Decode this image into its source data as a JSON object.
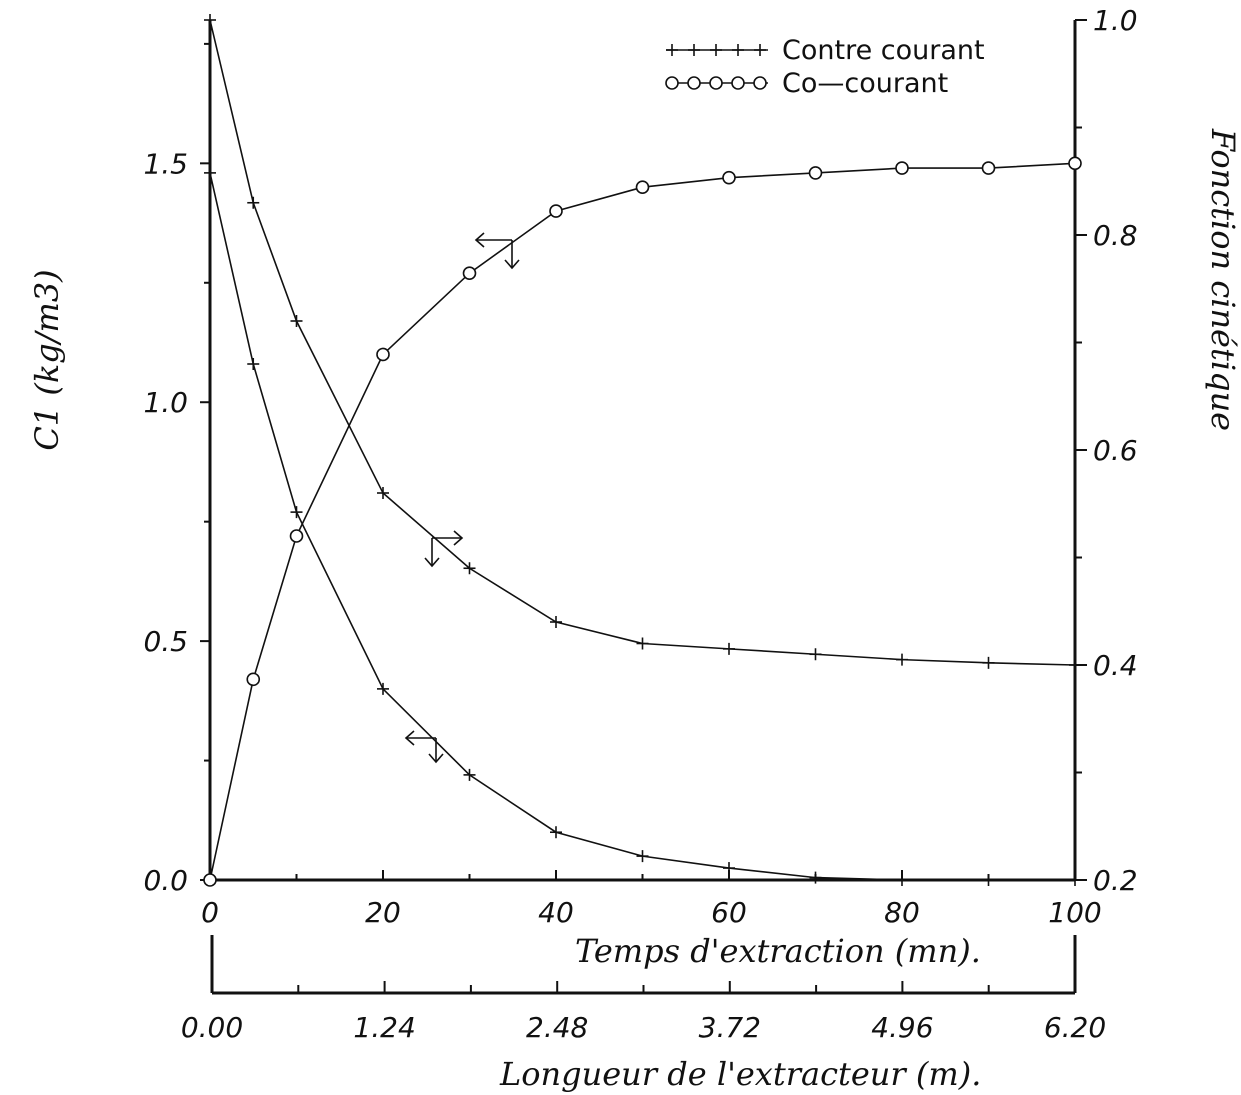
{
  "chart_data": {
    "type": "line",
    "x": [
      0,
      5,
      10,
      20,
      30,
      40,
      50,
      60,
      70,
      80,
      90,
      100
    ],
    "series": [
      {
        "name": "Contre courant",
        "axis": "right",
        "marker": "plus",
        "x": [
          0,
          5,
          10,
          20,
          30,
          40,
          50,
          60,
          70,
          80,
          90,
          100
        ],
        "values": [
          1.0,
          0.83,
          0.72,
          0.56,
          0.49,
          0.44,
          0.42,
          0.415,
          0.41,
          0.405,
          0.402,
          0.4
        ]
      },
      {
        "name": "Co-courant",
        "axis": "left",
        "marker": "circle",
        "x": [
          0,
          5,
          10,
          20,
          30,
          40,
          50,
          60,
          70,
          80,
          90,
          100
        ],
        "values": [
          0.0,
          0.42,
          0.72,
          1.1,
          1.27,
          1.4,
          1.45,
          1.47,
          1.48,
          1.49,
          1.49,
          1.5
        ]
      },
      {
        "name": "",
        "axis": "left",
        "marker": "plus",
        "x": [
          0,
          5,
          10,
          20,
          30,
          40,
          50,
          60,
          70,
          80,
          90,
          100
        ],
        "values": [
          1.48,
          1.08,
          0.77,
          0.4,
          0.22,
          0.1,
          0.05,
          0.025,
          0.005,
          0.0,
          0.0,
          0.0
        ]
      }
    ],
    "x_axis": {
      "label": "Temps d'extraction (mn).",
      "ticks": [
        "0",
        "20",
        "40",
        "60",
        "80",
        "100"
      ],
      "range": [
        0,
        100
      ]
    },
    "x2_axis": {
      "label": "Longueur de l'extracteur (m).",
      "ticks": [
        "0.00",
        "1.24",
        "2.48",
        "3.72",
        "4.96",
        "6.20"
      ],
      "range": [
        0,
        6.2
      ]
    },
    "y_left": {
      "label": "C1 (kg/m3)",
      "ticks": [
        "0.0",
        "0.5",
        "1.0",
        "1.5"
      ],
      "range": [
        0,
        1.8
      ]
    },
    "y_right": {
      "label": "Fonction cinétique",
      "ticks": [
        "0.2",
        "0.4",
        "0.6",
        "0.8",
        "1.0"
      ],
      "range": [
        0.2,
        1.0
      ]
    },
    "legend": {
      "position": "top-right",
      "entries": [
        "Contre courant",
        "Co—courant"
      ]
    },
    "grid": false
  }
}
